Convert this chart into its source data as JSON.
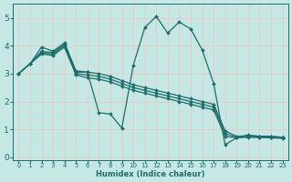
{
  "xlabel": "Humidex (Indice chaleur)",
  "xlim": [
    -0.5,
    23.5
  ],
  "ylim": [
    -0.1,
    5.5
  ],
  "xticks": [
    0,
    1,
    2,
    3,
    4,
    5,
    6,
    7,
    8,
    9,
    10,
    11,
    12,
    13,
    14,
    15,
    16,
    17,
    18,
    19,
    20,
    21,
    22,
    23
  ],
  "yticks": [
    0,
    1,
    2,
    3,
    4,
    5
  ],
  "bg_color": "#c5e8e5",
  "grid_color": "#d8eeeb",
  "line_color": "#1c6e6a",
  "line_width": 0.9,
  "marker": "D",
  "marker_size": 2.0,
  "lines": [
    {
      "x": [
        0,
        1,
        2,
        3,
        4,
        5,
        6,
        7,
        8,
        9,
        10,
        11,
        12,
        13,
        14,
        15,
        16,
        17,
        18,
        19,
        20,
        21,
        22,
        23
      ],
      "y": [
        3.0,
        3.35,
        3.95,
        3.8,
        4.1,
        3.1,
        3.05,
        1.6,
        1.55,
        1.05,
        3.3,
        4.65,
        5.05,
        4.45,
        4.85,
        4.6,
        3.85,
        2.65,
        0.45,
        0.7,
        0.8,
        0.75,
        0.75,
        0.72
      ]
    },
    {
      "x": [
        0,
        1,
        2,
        3,
        4,
        5,
        6,
        7,
        8,
        9,
        10,
        11,
        12,
        13,
        14,
        15,
        16,
        17,
        18,
        19,
        20,
        21,
        22,
        23
      ],
      "y": [
        3.0,
        3.35,
        3.8,
        3.75,
        4.05,
        3.05,
        3.05,
        3.0,
        2.9,
        2.75,
        2.6,
        2.5,
        2.4,
        2.3,
        2.2,
        2.1,
        2.0,
        1.9,
        0.95,
        0.75,
        0.78,
        0.76,
        0.75,
        0.72
      ]
    },
    {
      "x": [
        0,
        1,
        2,
        3,
        4,
        5,
        6,
        7,
        8,
        9,
        10,
        11,
        12,
        13,
        14,
        15,
        16,
        17,
        18,
        19,
        20,
        21,
        22,
        23
      ],
      "y": [
        3.0,
        3.35,
        3.75,
        3.7,
        4.0,
        3.0,
        2.95,
        2.9,
        2.8,
        2.65,
        2.5,
        2.4,
        2.3,
        2.2,
        2.1,
        2.0,
        1.9,
        1.8,
        0.85,
        0.72,
        0.75,
        0.73,
        0.72,
        0.7
      ]
    },
    {
      "x": [
        0,
        1,
        2,
        3,
        4,
        5,
        6,
        7,
        8,
        9,
        10,
        11,
        12,
        13,
        14,
        15,
        16,
        17,
        18,
        19,
        20,
        21,
        22,
        23
      ],
      "y": [
        3.0,
        3.35,
        3.7,
        3.65,
        3.95,
        2.95,
        2.85,
        2.8,
        2.7,
        2.55,
        2.4,
        2.3,
        2.2,
        2.1,
        2.0,
        1.9,
        1.8,
        1.7,
        0.75,
        0.7,
        0.72,
        0.71,
        0.7,
        0.68
      ]
    }
  ]
}
